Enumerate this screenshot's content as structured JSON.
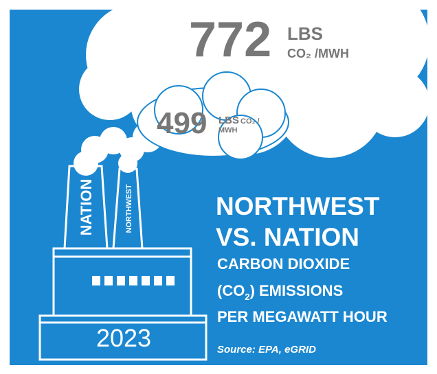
{
  "big_cloud": {
    "value": 772,
    "unit_top": "LBS",
    "unit_bottom": "CO₂ /MWH"
  },
  "small_cloud": {
    "value": 499,
    "unit_top": "LBS",
    "unit_co2": "CO₂ /",
    "unit_bottom": "MWH"
  },
  "stacks": [
    "NATION",
    "NORTHWEST"
  ],
  "year": "2023",
  "headline": [
    "NORTHWEST",
    "VS. NATION"
  ],
  "subhead": {
    "line1": "CARBON DIOXIDE",
    "line2_start": "(CO",
    "line2_sub": "2",
    "line2_end": ") EMISSIONS",
    "line3": "PER MEGAWATT HOUR"
  },
  "source": "Source: EPA, eGRID"
}
